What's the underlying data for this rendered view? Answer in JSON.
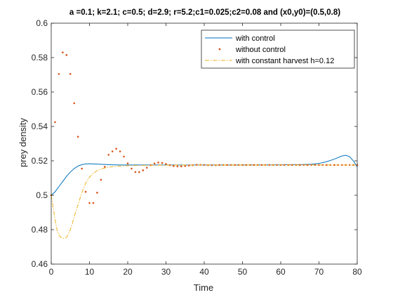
{
  "chart_data": {
    "type": "line",
    "title": "a =0.1; k=2.1; c=0.5; d=2.9; r=5.2;c1=0.025;c2=0.08 and (x0,y0)=(0.5,0.8)",
    "xlabel": "Time",
    "ylabel": "prey density",
    "xlim": [
      0,
      80
    ],
    "ylim": [
      0.46,
      0.6
    ],
    "xticks": [
      0,
      10,
      20,
      30,
      40,
      50,
      60,
      70,
      80
    ],
    "yticks": [
      0.46,
      0.48,
      0.5,
      0.52,
      0.54,
      0.56,
      0.58,
      0.6
    ],
    "legend_position": "top-right",
    "grid": false,
    "series": [
      {
        "name": "with control",
        "style": "solid-line",
        "color": "#0072BD",
        "x": [
          0,
          1,
          2,
          3,
          4,
          5,
          6,
          7,
          8,
          9,
          10,
          12,
          14,
          16,
          18,
          20,
          25,
          30,
          40,
          50,
          60,
          65,
          68,
          70,
          72,
          74,
          76,
          77,
          78,
          79,
          80
        ],
        "y": [
          0.5,
          0.502,
          0.505,
          0.508,
          0.511,
          0.5135,
          0.5155,
          0.517,
          0.5178,
          0.5182,
          0.5183,
          0.5181,
          0.5179,
          0.5177,
          0.5176,
          0.5176,
          0.5176,
          0.5176,
          0.5176,
          0.5176,
          0.5177,
          0.5178,
          0.518,
          0.5185,
          0.5195,
          0.521,
          0.5228,
          0.5232,
          0.5225,
          0.52,
          0.5165
        ]
      },
      {
        "name": "without control",
        "style": "dots",
        "color": "#D95319",
        "x": [
          0,
          1,
          2,
          3,
          4,
          5,
          6,
          7,
          8,
          9,
          10,
          11,
          12,
          13,
          14,
          15,
          16,
          17,
          18,
          19,
          20,
          21,
          22,
          23,
          24,
          25,
          26,
          27,
          28,
          29,
          30,
          31,
          32,
          33,
          34,
          35,
          36,
          37,
          38,
          39,
          40,
          41,
          42,
          43,
          44,
          45,
          46,
          47,
          48,
          49,
          50,
          51,
          52,
          53,
          54,
          55,
          56,
          57,
          58,
          59,
          60,
          61,
          62,
          63,
          64,
          65,
          66,
          67,
          68,
          69,
          70,
          71,
          72,
          73,
          74,
          75,
          76,
          77,
          78,
          79,
          80
        ],
        "y": [
          0.5,
          0.5425,
          0.5705,
          0.583,
          0.5815,
          0.5705,
          0.5535,
          0.534,
          0.5155,
          0.502,
          0.4955,
          0.4955,
          0.5015,
          0.509,
          0.5165,
          0.5235,
          0.5255,
          0.527,
          0.5255,
          0.5225,
          0.5185,
          0.5155,
          0.5135,
          0.5135,
          0.5145,
          0.516,
          0.5175,
          0.5185,
          0.519,
          0.5188,
          0.5182,
          0.5175,
          0.517,
          0.5168,
          0.5168,
          0.517,
          0.5173,
          0.5175,
          0.5177,
          0.5177,
          0.5176,
          0.5175,
          0.5175,
          0.5175,
          0.5176,
          0.5176,
          0.5176,
          0.5176,
          0.5176,
          0.5176,
          0.5176,
          0.5176,
          0.5176,
          0.5176,
          0.5176,
          0.5176,
          0.5176,
          0.5176,
          0.5176,
          0.5176,
          0.5176,
          0.5176,
          0.5176,
          0.5176,
          0.5176,
          0.5176,
          0.5176,
          0.5176,
          0.5176,
          0.5176,
          0.5176,
          0.5176,
          0.5176,
          0.5176,
          0.5176,
          0.5176,
          0.5176,
          0.5176,
          0.5176,
          0.5176,
          0.5176
        ]
      },
      {
        "name": "with constant harvest h=0.12",
        "style": "dash-dot",
        "color": "#EDB120",
        "x": [
          0,
          0.5,
          1,
          1.5,
          2,
          2.5,
          3,
          3.5,
          4,
          4.5,
          5,
          5.5,
          6,
          7,
          8,
          9,
          10,
          11,
          12,
          13,
          14,
          15,
          16,
          18,
          20,
          22,
          25,
          30,
          40,
          50,
          60,
          70,
          80
        ],
        "y": [
          0.5,
          0.493,
          0.486,
          0.48,
          0.477,
          0.4755,
          0.475,
          0.475,
          0.4755,
          0.4775,
          0.48,
          0.4835,
          0.4875,
          0.4945,
          0.5015,
          0.507,
          0.5105,
          0.5128,
          0.5143,
          0.5152,
          0.5158,
          0.5163,
          0.5166,
          0.517,
          0.5172,
          0.5173,
          0.5174,
          0.5175,
          0.5176,
          0.5176,
          0.5176,
          0.5176,
          0.5176
        ]
      }
    ]
  }
}
